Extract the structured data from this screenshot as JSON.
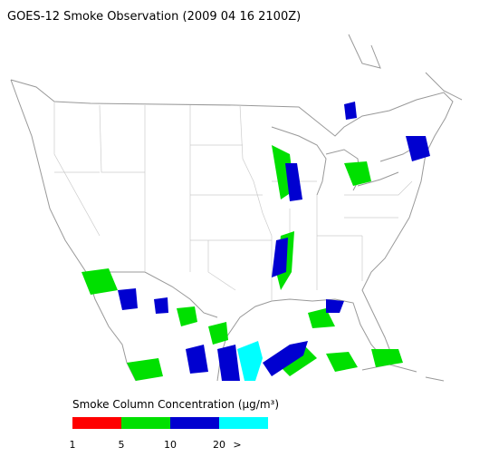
{
  "header": {
    "title": "GOES-12 Smoke Observation (2009 04 16  2100Z)"
  },
  "legend": {
    "title": "Smoke Column Concentration (µg/m³)",
    "colors": [
      "#ff0000",
      "#00e000",
      "#0000d0",
      "#00ffff"
    ],
    "labels": [
      "1",
      "5",
      "10",
      "20",
      ">"
    ]
  }
}
